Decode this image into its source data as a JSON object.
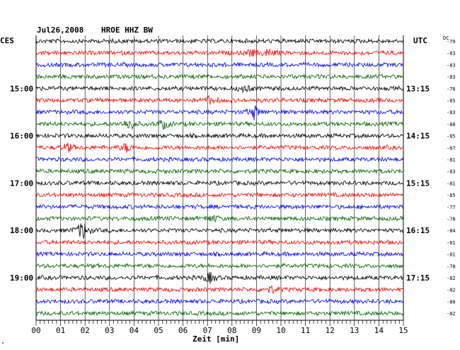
{
  "header": {
    "date": "Jul26,2008",
    "station": "HROE HHZ BW",
    "left_zone": "CES",
    "right_zone": "UTC",
    "dc_label": "DC",
    "corner_mark": "\""
  },
  "colors": {
    "traces": [
      "#000000",
      "#ff0000",
      "#0000ff",
      "#006400"
    ],
    "grid": "#000000",
    "background": "#ffffff"
  },
  "left_hour_labels": [
    {
      "row": 4,
      "text": "15:00"
    },
    {
      "row": 8,
      "text": "16:00"
    },
    {
      "row": 12,
      "text": "17:00"
    },
    {
      "row": 16,
      "text": "18:00"
    },
    {
      "row": 20,
      "text": "19:00"
    }
  ],
  "right_hour_labels": [
    {
      "row": 4,
      "text": "13:15"
    },
    {
      "row": 8,
      "text": "14:15"
    },
    {
      "row": 12,
      "text": "15:15"
    },
    {
      "row": 16,
      "text": "16:15"
    },
    {
      "row": 20,
      "text": "17:15"
    }
  ],
  "dc_values": [
    "-79",
    "-83",
    "-83",
    "-83",
    "-76",
    "-85",
    "-83",
    "-88",
    "-85",
    "-87",
    "-81",
    "-83",
    "-81",
    "-85",
    "-77",
    "-78",
    "-84",
    "-81",
    "-81",
    "-78",
    "-82",
    "-82",
    "-80",
    "-82"
  ],
  "x_axis": {
    "ticks": [
      "00",
      "01",
      "02",
      "03",
      "04",
      "05",
      "06",
      "07",
      "08",
      "09",
      "10",
      "11",
      "12",
      "13",
      "14",
      "15"
    ],
    "label": "Zeit [min]"
  },
  "rows": 24,
  "events": [
    {
      "row": 1,
      "minute": 9.5,
      "amp": 1.6
    },
    {
      "row": 1,
      "minute": 8.8,
      "amp": 1.2
    },
    {
      "row": 4,
      "minute": 8.5,
      "amp": 1.3
    },
    {
      "row": 5,
      "minute": 7.1,
      "amp": 1.3
    },
    {
      "row": 6,
      "minute": 8.9,
      "amp": 2.4
    },
    {
      "row": 7,
      "minute": 3.8,
      "amp": 2.4
    },
    {
      "row": 7,
      "minute": 5.2,
      "amp": 1.6
    },
    {
      "row": 9,
      "minute": 1.3,
      "amp": 1.4
    },
    {
      "row": 9,
      "minute": 3.7,
      "amp": 1.6
    },
    {
      "row": 15,
      "minute": 7.2,
      "amp": 1.3
    },
    {
      "row": 16,
      "minute": 1.9,
      "amp": 3.6
    },
    {
      "row": 20,
      "minute": 7.1,
      "amp": 1.8
    },
    {
      "row": 21,
      "minute": 9.6,
      "amp": 1.2
    }
  ]
}
